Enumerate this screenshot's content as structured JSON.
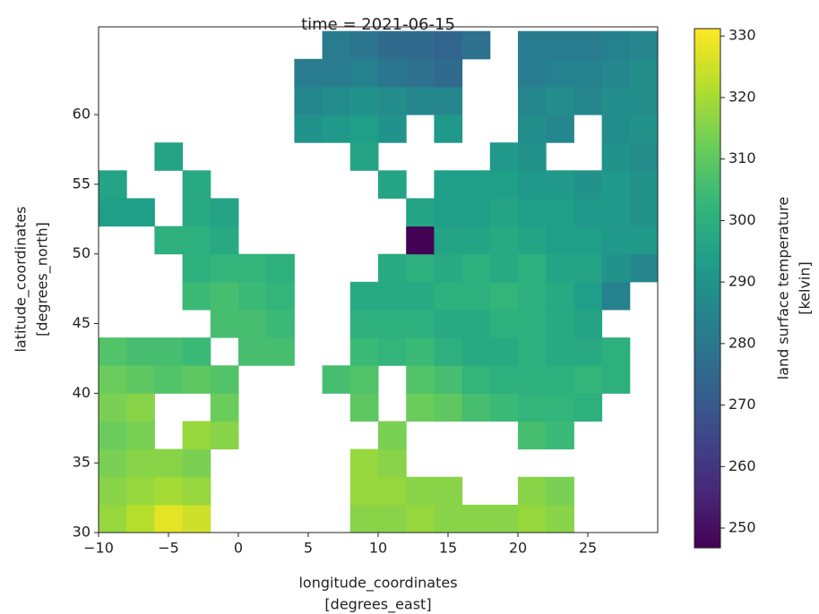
{
  "chart_data": {
    "type": "heatmap",
    "title": "time = 2021-06-15",
    "x_label": [
      "longitude_coordinates",
      "[degrees_east]"
    ],
    "y_label": [
      "latitude_coordinates",
      "[degrees_north]"
    ],
    "colorbar_label": [
      "land surface temperature",
      "[kelvin]"
    ],
    "x": [
      -9,
      -7,
      -5,
      -3,
      -1,
      1,
      3,
      5,
      7,
      9,
      11,
      13,
      15,
      17,
      19,
      21,
      23,
      25,
      27,
      29
    ],
    "y": [
      31,
      33,
      35,
      37,
      39,
      41,
      43,
      45,
      47,
      49,
      51,
      53,
      55,
      57,
      59,
      61,
      63,
      65
    ],
    "values": [
      [
        318,
        322,
        328,
        325,
        null,
        null,
        null,
        null,
        null,
        316,
        316,
        318,
        316,
        316,
        316,
        318,
        316,
        null,
        null,
        null
      ],
      [
        316,
        318,
        320,
        318,
        null,
        null,
        null,
        null,
        null,
        318,
        318,
        316,
        316,
        null,
        null,
        316,
        314,
        null,
        null,
        null
      ],
      [
        314,
        316,
        316,
        314,
        null,
        null,
        null,
        null,
        null,
        318,
        316,
        null,
        null,
        null,
        null,
        null,
        null,
        null,
        null,
        null
      ],
      [
        312,
        314,
        null,
        318,
        316,
        null,
        null,
        null,
        null,
        null,
        314,
        null,
        null,
        null,
        null,
        306,
        304,
        null,
        null,
        null
      ],
      [
        314,
        316,
        null,
        null,
        312,
        null,
        null,
        null,
        null,
        310,
        null,
        312,
        310,
        306,
        304,
        302,
        302,
        300,
        null,
        null
      ],
      [
        312,
        310,
        308,
        310,
        308,
        null,
        null,
        null,
        306,
        308,
        null,
        308,
        306,
        302,
        300,
        300,
        300,
        302,
        300,
        null
      ],
      [
        308,
        306,
        306,
        304,
        null,
        306,
        306,
        null,
        null,
        304,
        302,
        304,
        300,
        298,
        298,
        300,
        298,
        298,
        300,
        null
      ],
      [
        null,
        null,
        null,
        null,
        306,
        306,
        304,
        null,
        null,
        300,
        300,
        300,
        298,
        298,
        300,
        300,
        298,
        296,
        null,
        null
      ],
      [
        null,
        null,
        null,
        304,
        306,
        304,
        302,
        null,
        null,
        298,
        298,
        298,
        300,
        300,
        302,
        300,
        298,
        294,
        284,
        null
      ],
      [
        null,
        null,
        null,
        300,
        302,
        302,
        300,
        null,
        null,
        null,
        298,
        300,
        298,
        300,
        298,
        300,
        296,
        296,
        290,
        286
      ],
      [
        null,
        null,
        300,
        300,
        298,
        null,
        null,
        null,
        null,
        null,
        null,
        247,
        296,
        296,
        298,
        296,
        294,
        294,
        292,
        292
      ],
      [
        294,
        294,
        null,
        298,
        296,
        null,
        null,
        null,
        null,
        null,
        null,
        296,
        294,
        294,
        296,
        294,
        294,
        292,
        292,
        290
      ],
      [
        296,
        null,
        null,
        298,
        null,
        null,
        null,
        null,
        null,
        null,
        296,
        null,
        294,
        294,
        294,
        292,
        292,
        290,
        292,
        290
      ],
      [
        null,
        null,
        296,
        null,
        null,
        null,
        null,
        null,
        null,
        296,
        null,
        null,
        null,
        null,
        292,
        290,
        null,
        null,
        290,
        288
      ],
      [
        null,
        null,
        null,
        null,
        null,
        null,
        null,
        290,
        292,
        294,
        290,
        null,
        292,
        null,
        null,
        288,
        286,
        null,
        288,
        290
      ],
      [
        null,
        null,
        null,
        null,
        null,
        null,
        null,
        286,
        288,
        290,
        288,
        286,
        286,
        null,
        null,
        286,
        288,
        286,
        288,
        288
      ],
      [
        null,
        null,
        null,
        null,
        null,
        null,
        null,
        282,
        282,
        284,
        280,
        278,
        276,
        null,
        null,
        282,
        284,
        284,
        286,
        288
      ],
      [
        null,
        null,
        null,
        null,
        null,
        null,
        null,
        null,
        282,
        280,
        276,
        276,
        274,
        278,
        null,
        282,
        282,
        282,
        284,
        286
      ]
    ],
    "xlim": [
      -10,
      30
    ],
    "ylim": [
      30,
      66.3
    ],
    "xticks": [
      {
        "value": -10,
        "label": "−10"
      },
      {
        "value": -5,
        "label": "−5"
      },
      0,
      5,
      10,
      15,
      20,
      25
    ],
    "yticks": [
      30,
      35,
      40,
      45,
      50,
      55,
      60
    ],
    "colormap": "viridis",
    "clim": [
      246.8,
      331.2
    ],
    "cticks": [
      250,
      260,
      270,
      280,
      290,
      300,
      310,
      320,
      330
    ]
  }
}
